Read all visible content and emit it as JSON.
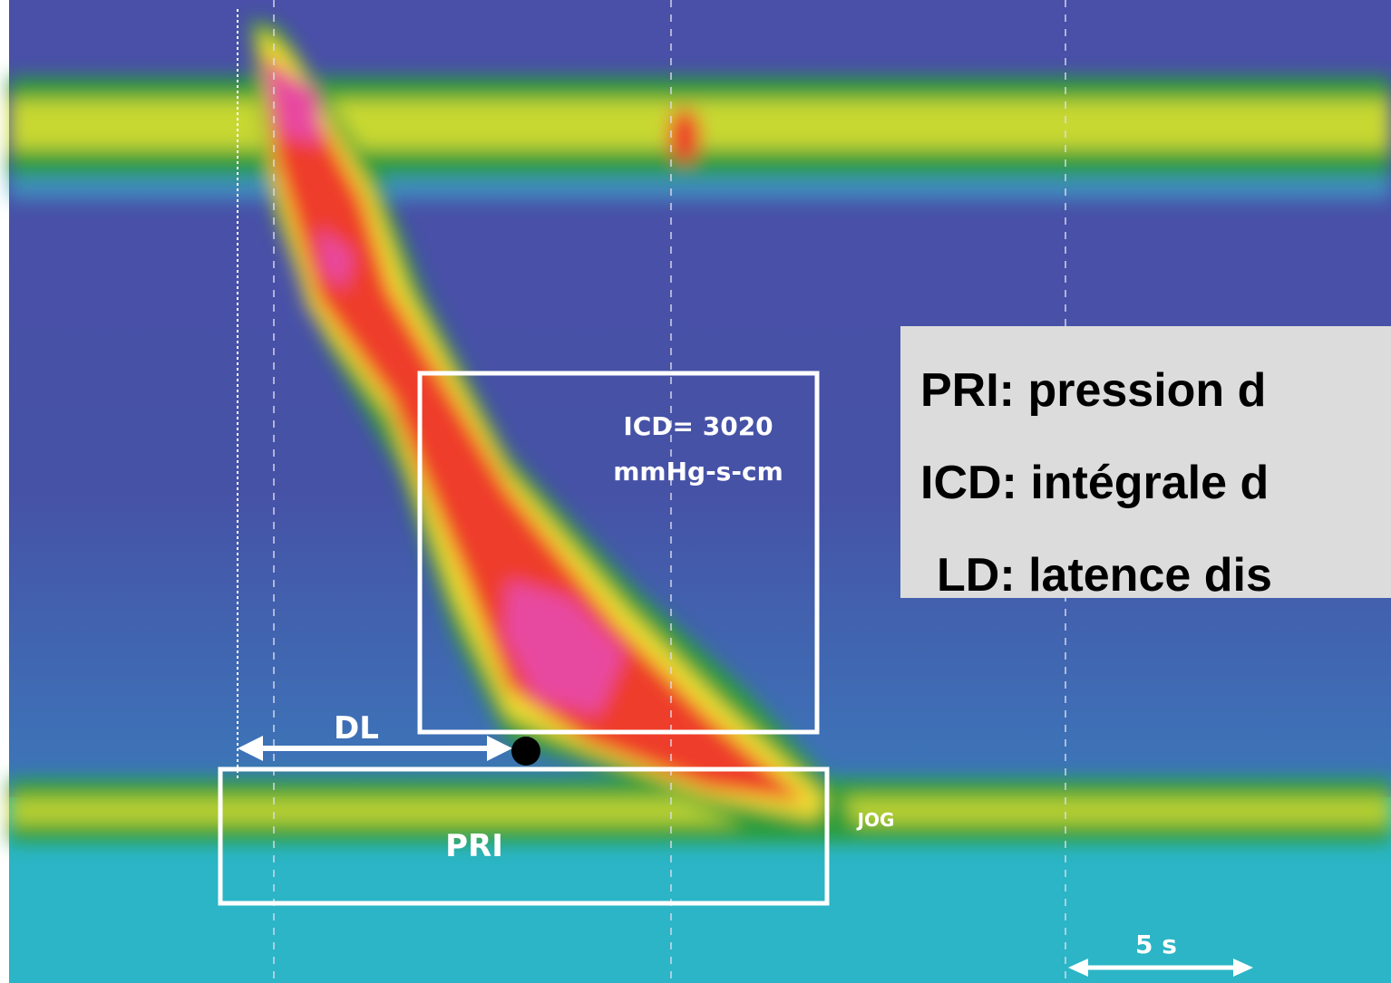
{
  "annotations": {
    "icd_value": "ICD= 3020",
    "icd_unit": "mmHg-s-cm",
    "dl": "DL",
    "pri": "PRI",
    "jog": "JOG",
    "scale": "5 s"
  },
  "legend": {
    "lines": [
      "PRI: pression d",
      "ICD: intégrale d",
      "LD: latence dis"
    ]
  }
}
